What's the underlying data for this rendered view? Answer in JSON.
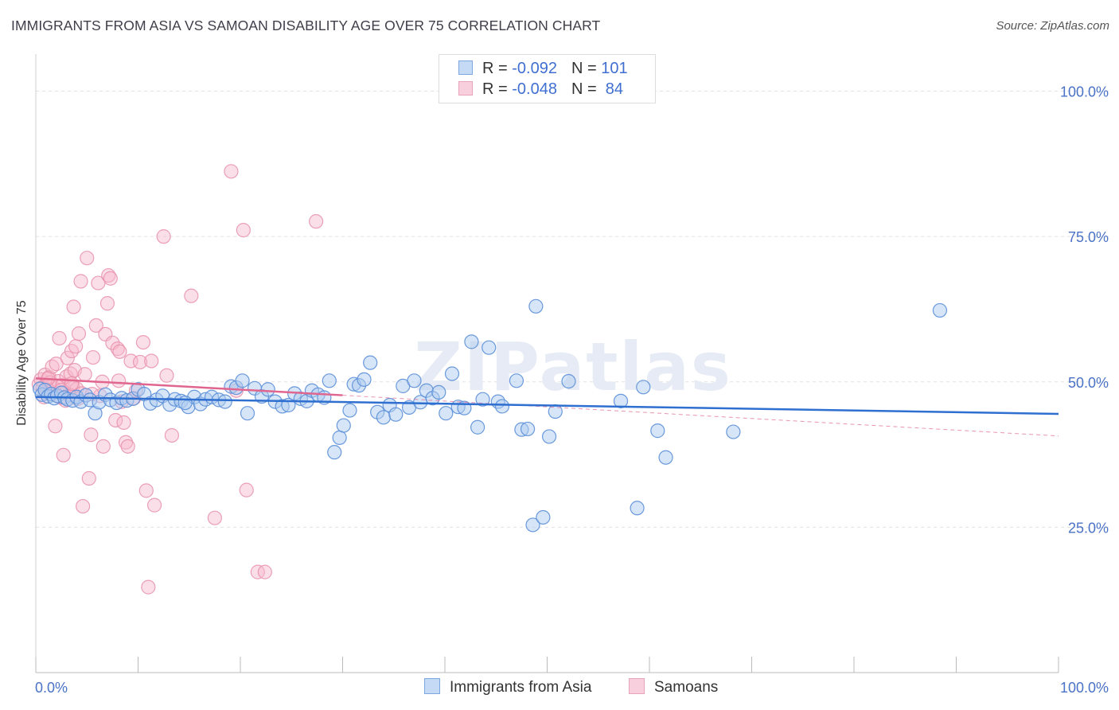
{
  "title": "IMMIGRANTS FROM ASIA VS SAMOAN DISABILITY AGE OVER 75 CORRELATION CHART",
  "source": "Source: ZipAtlas.com",
  "watermark": "ZIPatlas",
  "legend_top": {
    "rows": [
      {
        "r_label": "R = ",
        "r_value": "-0.092",
        "n_label": "N = ",
        "n_value": "101"
      },
      {
        "r_label": "R = ",
        "r_value": "-0.048",
        "n_label": "N = ",
        "n_value": " 84"
      }
    ]
  },
  "colors": {
    "asia_fill": "#aecbf0",
    "asia_stroke": "#5b8fd8",
    "asia_line": "#2f6fcf",
    "samoa_fill": "#f6b9cb",
    "samoa_stroke": "#e890ac",
    "samoa_line": "#e0668f",
    "grid": "#e2e2e2",
    "tick_text": "#4a72c6"
  },
  "chart_data": {
    "type": "scatter",
    "title": "IMMIGRANTS FROM ASIA VS SAMOAN DISABILITY AGE OVER 75 CORRELATION CHART",
    "xlabel": "",
    "ylabel": "Disability Age Over 75",
    "xlim": [
      0,
      100
    ],
    "ylim": [
      0,
      105
    ],
    "x_ticks": [
      0,
      10,
      20,
      30,
      40,
      50,
      60,
      70,
      80,
      90,
      100
    ],
    "x_tick_labels": [
      {
        "value": 0,
        "label": "0.0%"
      },
      {
        "value": 100,
        "label": "100.0%"
      }
    ],
    "y_ticks": [
      {
        "value": 25,
        "label": "25.0%"
      },
      {
        "value": 50,
        "label": "50.0%"
      },
      {
        "value": 75,
        "label": "75.0%"
      },
      {
        "value": 100,
        "label": "100.0%"
      }
    ],
    "grid": true,
    "legend": "bottom",
    "series": [
      {
        "name": "Immigrants from Asia",
        "r": -0.092,
        "n": 101,
        "trend": {
          "x": [
            0,
            100
          ],
          "y": [
            47.4,
            44.5
          ]
        },
        "points": [
          [
            0.4,
            48.8
          ],
          [
            0.6,
            47.8
          ],
          [
            0.9,
            48.6
          ],
          [
            1.2,
            47.5
          ],
          [
            1.5,
            47.9
          ],
          [
            1.8,
            47.2
          ],
          [
            2.1,
            47.6
          ],
          [
            2.5,
            48.1
          ],
          [
            2.8,
            47.3
          ],
          [
            3.1,
            47.0
          ],
          [
            3.6,
            46.8
          ],
          [
            4.0,
            47.4
          ],
          [
            4.4,
            46.6
          ],
          [
            4.9,
            47.7
          ],
          [
            5.3,
            46.9
          ],
          [
            5.8,
            44.6
          ],
          [
            6.2,
            46.5
          ],
          [
            6.8,
            47.8
          ],
          [
            7.3,
            46.9
          ],
          [
            7.9,
            46.4
          ],
          [
            8.4,
            47.2
          ],
          [
            8.9,
            46.8
          ],
          [
            9.5,
            47.1
          ],
          [
            10.0,
            48.7
          ],
          [
            10.6,
            47.9
          ],
          [
            11.2,
            46.3
          ],
          [
            11.8,
            46.9
          ],
          [
            12.4,
            47.6
          ],
          [
            13.1,
            46.1
          ],
          [
            13.6,
            47.0
          ],
          [
            14.2,
            46.7
          ],
          [
            14.9,
            45.7
          ],
          [
            15.5,
            47.4
          ],
          [
            16.1,
            46.2
          ],
          [
            16.6,
            47.0
          ],
          [
            17.2,
            47.4
          ],
          [
            17.9,
            46.9
          ],
          [
            18.5,
            46.6
          ],
          [
            19.1,
            49.2
          ],
          [
            19.6,
            49.0
          ],
          [
            20.2,
            50.2
          ],
          [
            20.7,
            44.6
          ],
          [
            21.4,
            48.9
          ],
          [
            22.1,
            47.5
          ],
          [
            22.7,
            48.7
          ],
          [
            23.4,
            46.6
          ],
          [
            24.1,
            45.8
          ],
          [
            24.7,
            46.0
          ],
          [
            25.3,
            48.0
          ],
          [
            25.9,
            47.1
          ],
          [
            26.5,
            46.7
          ],
          [
            27.0,
            48.5
          ],
          [
            27.6,
            47.8
          ],
          [
            28.2,
            47.3
          ],
          [
            28.7,
            50.2
          ],
          [
            29.2,
            37.9
          ],
          [
            29.7,
            40.4
          ],
          [
            30.1,
            42.5
          ],
          [
            30.7,
            45.1
          ],
          [
            31.1,
            49.6
          ],
          [
            31.6,
            49.4
          ],
          [
            32.1,
            50.4
          ],
          [
            32.7,
            53.3
          ],
          [
            33.4,
            44.8
          ],
          [
            34.0,
            43.9
          ],
          [
            34.6,
            46.0
          ],
          [
            35.2,
            44.4
          ],
          [
            35.9,
            49.3
          ],
          [
            36.5,
            45.6
          ],
          [
            37.0,
            50.2
          ],
          [
            37.6,
            46.5
          ],
          [
            38.2,
            48.5
          ],
          [
            38.8,
            47.2
          ],
          [
            39.4,
            48.2
          ],
          [
            40.1,
            44.6
          ],
          [
            40.7,
            51.4
          ],
          [
            41.3,
            45.7
          ],
          [
            41.9,
            45.5
          ],
          [
            42.6,
            56.9
          ],
          [
            43.2,
            42.2
          ],
          [
            43.7,
            47.0
          ],
          [
            44.3,
            55.9
          ],
          [
            45.2,
            46.6
          ],
          [
            45.6,
            45.8
          ],
          [
            47.0,
            50.2
          ],
          [
            47.5,
            41.8
          ],
          [
            48.1,
            41.9
          ],
          [
            48.6,
            25.4
          ],
          [
            48.9,
            63.0
          ],
          [
            49.6,
            26.7
          ],
          [
            50.2,
            40.6
          ],
          [
            50.8,
            44.9
          ],
          [
            52.1,
            50.1
          ],
          [
            57.2,
            46.7
          ],
          [
            58.8,
            28.3
          ],
          [
            59.4,
            49.1
          ],
          [
            60.8,
            41.6
          ],
          [
            61.6,
            37.0
          ],
          [
            68.2,
            41.4
          ],
          [
            88.4,
            62.3
          ],
          [
            14.6,
            46.4
          ]
        ]
      },
      {
        "name": "Samoans",
        "r": -0.048,
        "n": 84,
        "trend": {
          "x": [
            0,
            30
          ],
          "y": [
            50.6,
            47.7
          ]
        },
        "trend_extended": {
          "x": [
            30,
            100
          ],
          "y": [
            47.7,
            40.7
          ]
        },
        "points": [
          [
            0.3,
            49.6
          ],
          [
            0.5,
            50.4
          ],
          [
            0.7,
            49.1
          ],
          [
            0.9,
            51.2
          ],
          [
            1.1,
            48.5
          ],
          [
            1.3,
            50.8
          ],
          [
            1.4,
            49.9
          ],
          [
            1.6,
            52.6
          ],
          [
            1.8,
            48.9
          ],
          [
            2.0,
            53.1
          ],
          [
            2.2,
            50.1
          ],
          [
            2.4,
            47.3
          ],
          [
            2.6,
            49.4
          ],
          [
            2.8,
            48.2
          ],
          [
            3.0,
            50.9
          ],
          [
            3.2,
            47.8
          ],
          [
            3.4,
            51.4
          ],
          [
            3.6,
            49.2
          ],
          [
            3.8,
            52.0
          ],
          [
            4.0,
            48.8
          ],
          [
            1.9,
            42.4
          ],
          [
            2.3,
            57.5
          ],
          [
            2.7,
            37.4
          ],
          [
            3.1,
            54.1
          ],
          [
            3.5,
            55.3
          ],
          [
            3.7,
            62.9
          ],
          [
            3.9,
            56.1
          ],
          [
            4.2,
            58.3
          ],
          [
            4.4,
            67.3
          ],
          [
            4.6,
            28.6
          ],
          [
            4.8,
            51.3
          ],
          [
            5.0,
            71.3
          ],
          [
            5.2,
            33.4
          ],
          [
            5.4,
            40.9
          ],
          [
            5.6,
            54.2
          ],
          [
            5.9,
            59.7
          ],
          [
            6.1,
            67.0
          ],
          [
            6.3,
            47.6
          ],
          [
            6.6,
            38.9
          ],
          [
            6.8,
            58.2
          ],
          [
            7.0,
            63.5
          ],
          [
            7.1,
            68.3
          ],
          [
            7.3,
            67.8
          ],
          [
            7.5,
            56.7
          ],
          [
            7.8,
            43.4
          ],
          [
            8.0,
            55.7
          ],
          [
            8.2,
            55.2
          ],
          [
            8.4,
            46.6
          ],
          [
            8.6,
            43.0
          ],
          [
            8.8,
            39.6
          ],
          [
            9.0,
            38.9
          ],
          [
            9.3,
            53.6
          ],
          [
            9.6,
            47.2
          ],
          [
            10.2,
            53.4
          ],
          [
            10.5,
            56.8
          ],
          [
            10.8,
            31.3
          ],
          [
            11.0,
            14.7
          ],
          [
            11.3,
            53.6
          ],
          [
            11.6,
            28.8
          ],
          [
            12.5,
            75.0
          ],
          [
            12.8,
            51.1
          ],
          [
            13.3,
            40.8
          ],
          [
            15.2,
            64.8
          ],
          [
            17.5,
            26.6
          ],
          [
            19.1,
            86.2
          ],
          [
            19.6,
            48.5
          ],
          [
            20.3,
            76.1
          ],
          [
            20.6,
            31.4
          ],
          [
            21.7,
            17.3
          ],
          [
            22.4,
            17.3
          ],
          [
            27.4,
            77.6
          ],
          [
            6.5,
            50.0
          ],
          [
            2.9,
            46.8
          ],
          [
            3.3,
            47.7
          ],
          [
            1.0,
            48.0
          ],
          [
            4.5,
            48.0
          ],
          [
            5.5,
            47.9
          ],
          [
            2.5,
            48.6
          ],
          [
            8.1,
            50.2
          ],
          [
            9.8,
            48.5
          ],
          [
            0.8,
            47.4
          ],
          [
            3.5,
            49.7
          ],
          [
            4.1,
            47.1
          ],
          [
            1.2,
            50.6
          ]
        ]
      }
    ]
  },
  "bottom_legend": [
    {
      "label": "Immigrants from Asia"
    },
    {
      "label": "Samoans"
    }
  ]
}
